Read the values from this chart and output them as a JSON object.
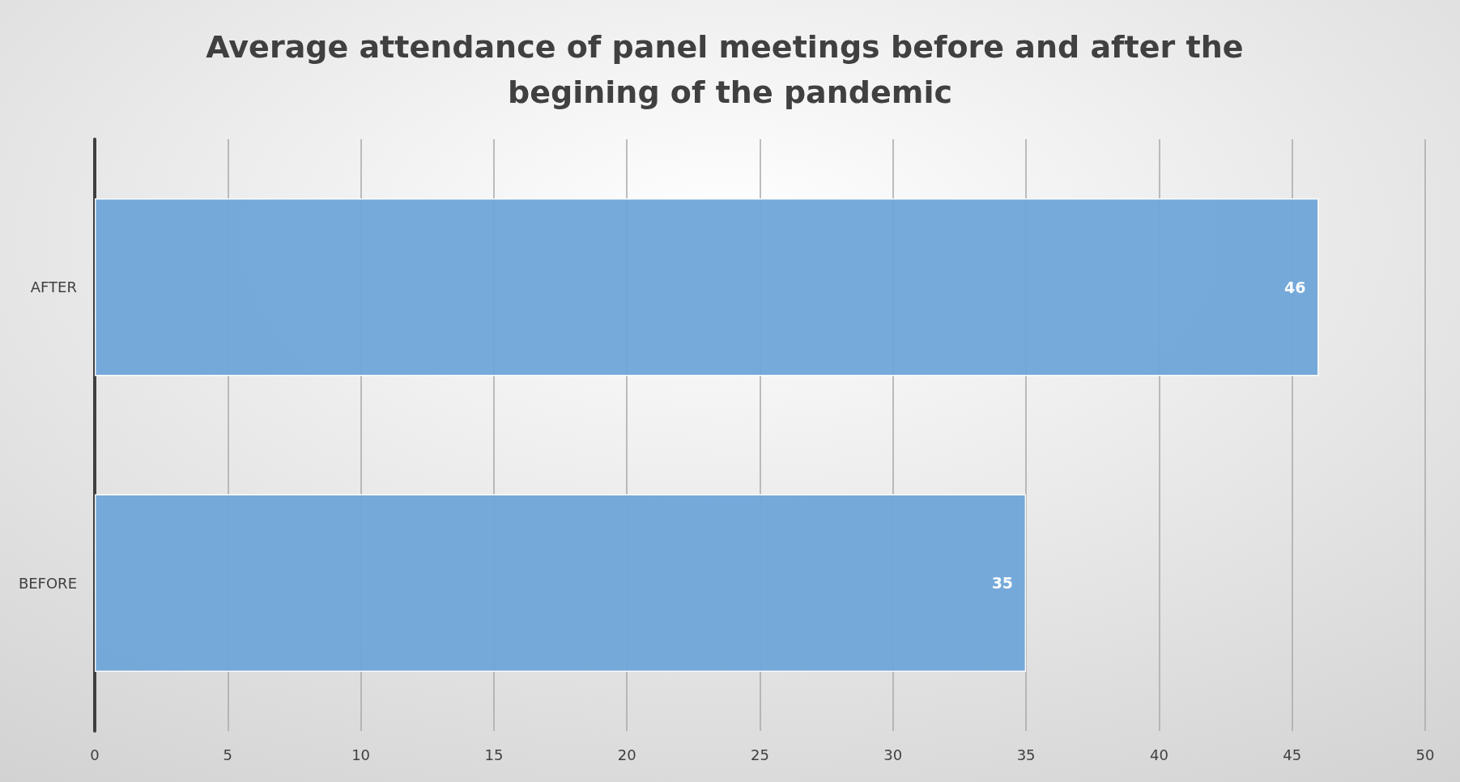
{
  "chart_data": {
    "type": "bar",
    "orientation": "horizontal",
    "title": "Average attendance of panel meetings before and after the begining of the pandemic",
    "categories": [
      "AFTER",
      "BEFORE"
    ],
    "values": [
      46,
      35
    ],
    "color": "#6fa5d8",
    "xlim": [
      0,
      50
    ],
    "xticks": [
      0,
      5,
      10,
      15,
      20,
      25,
      30,
      35,
      40,
      45,
      50
    ],
    "grid": "x",
    "data_labels": true
  }
}
